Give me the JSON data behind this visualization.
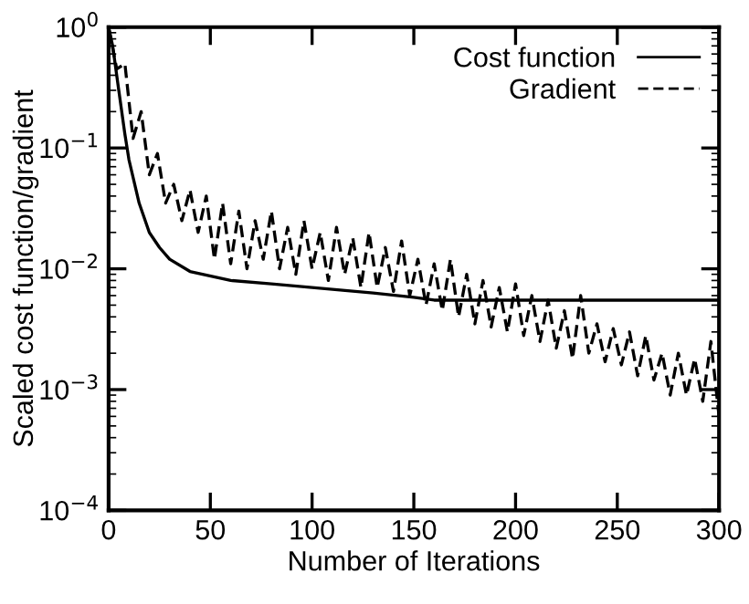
{
  "chart_data": {
    "type": "line",
    "xlabel": "Number of Iterations",
    "ylabel": "Scaled cost function/gradient",
    "xlim": [
      0,
      300
    ],
    "xticks": [
      0,
      50,
      100,
      150,
      200,
      250,
      300
    ],
    "ylim": [
      0.0001,
      1
    ],
    "log": "y",
    "yticks": [
      {
        "value": 0.0001,
        "label": "10$^{−4}$"
      },
      {
        "value": 0.001,
        "label": "10$^{−3}$"
      },
      {
        "value": 0.01,
        "label": "10$^{−2}$"
      },
      {
        "value": 0.1,
        "label": "10$^{−1}$"
      },
      {
        "value": 1,
        "label": "10$^{0}$"
      }
    ],
    "grid": false,
    "legend": "top right",
    "series": [
      {
        "name": "Cost function",
        "color": "#000000",
        "line_style": "solid",
        "x": [
          0,
          2,
          5,
          8,
          10,
          15,
          20,
          25,
          30,
          40,
          60,
          80,
          100,
          130,
          150,
          160,
          300
        ],
        "values": [
          1.0,
          0.7,
          0.3,
          0.13,
          0.08,
          0.035,
          0.02,
          0.015,
          0.012,
          0.0095,
          0.008,
          0.0075,
          0.007,
          0.0063,
          0.0058,
          0.0055,
          0.0055
        ]
      },
      {
        "name": "Gradient",
        "color": "#000000",
        "line_style": "dashed",
        "x": [
          0,
          4,
          8,
          12,
          16,
          20,
          24,
          28,
          32,
          36,
          40,
          44,
          48,
          52,
          56,
          60,
          64,
          68,
          72,
          76,
          80,
          84,
          88,
          92,
          96,
          100,
          104,
          108,
          112,
          116,
          120,
          124,
          128,
          132,
          136,
          140,
          144,
          148,
          152,
          156,
          160,
          164,
          168,
          172,
          176,
          180,
          184,
          188,
          192,
          196,
          200,
          204,
          208,
          212,
          216,
          220,
          224,
          228,
          232,
          236,
          240,
          244,
          248,
          252,
          256,
          260,
          264,
          268,
          272,
          276,
          280,
          284,
          288,
          292,
          296,
          300
        ],
        "values": [
          1.0,
          0.45,
          0.5,
          0.12,
          0.2,
          0.06,
          0.09,
          0.035,
          0.05,
          0.025,
          0.045,
          0.02,
          0.04,
          0.012,
          0.035,
          0.011,
          0.03,
          0.01,
          0.025,
          0.012,
          0.03,
          0.01,
          0.022,
          0.009,
          0.025,
          0.01,
          0.02,
          0.008,
          0.022,
          0.009,
          0.018,
          0.007,
          0.02,
          0.007,
          0.015,
          0.0065,
          0.017,
          0.006,
          0.012,
          0.005,
          0.011,
          0.0045,
          0.012,
          0.004,
          0.009,
          0.0035,
          0.008,
          0.0033,
          0.007,
          0.003,
          0.0075,
          0.0028,
          0.006,
          0.0025,
          0.0055,
          0.0022,
          0.0045,
          0.0018,
          0.006,
          0.002,
          0.0035,
          0.0017,
          0.0032,
          0.0016,
          0.003,
          0.0013,
          0.0028,
          0.0012,
          0.002,
          0.0009,
          0.002,
          0.0009,
          0.0018,
          0.0008,
          0.0025,
          0.0006
        ]
      }
    ]
  }
}
